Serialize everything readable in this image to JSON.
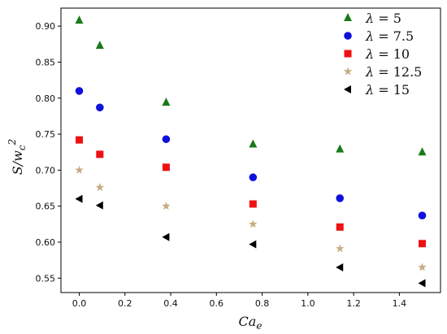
{
  "chart_data": {
    "type": "scatter",
    "title": "",
    "xlabel": "Ca_e",
    "ylabel": "S/w_c^2",
    "xlim": [
      -0.08,
      1.58
    ],
    "ylim": [
      0.53,
      0.925
    ],
    "xticks": [
      "0.0",
      "0.2",
      "0.4",
      "0.6",
      "0.8",
      "1.0",
      "1.2",
      "1.4"
    ],
    "yticks": [
      "0.55",
      "0.60",
      "0.65",
      "0.70",
      "0.75",
      "0.80",
      "0.85",
      "0.90"
    ],
    "grid": false,
    "legend_position": "top-right",
    "x": [
      0.0,
      0.09,
      0.38,
      0.76,
      1.14,
      1.5
    ],
    "series": [
      {
        "name": "λ = 5",
        "greek": "λ",
        "eq": " = ",
        "num": "5",
        "marker": "triangle-up",
        "color": "#1a7a1a",
        "values": [
          0.908,
          0.873,
          0.794,
          0.736,
          0.729,
          0.725
        ]
      },
      {
        "name": "λ = 7.5",
        "greek": "λ",
        "eq": " = ",
        "num": "7.5",
        "marker": "circle",
        "color": "#1010dd",
        "values": [
          0.81,
          0.787,
          0.743,
          0.69,
          0.661,
          0.637
        ]
      },
      {
        "name": "λ = 10",
        "greek": "λ",
        "eq": " = ",
        "num": "10",
        "marker": "square",
        "color": "#ee1111",
        "values": [
          0.742,
          0.722,
          0.704,
          0.653,
          0.621,
          0.598
        ]
      },
      {
        "name": "λ = 12.5",
        "greek": "λ",
        "eq": " = ",
        "num": "12.5",
        "marker": "star",
        "color": "#c8ab84",
        "values": [
          0.7,
          0.676,
          0.65,
          0.625,
          0.591,
          0.565
        ]
      },
      {
        "name": "λ = 15",
        "greek": "λ",
        "eq": " = ",
        "num": "15",
        "marker": "triangle-left",
        "color": "#000000",
        "values": [
          0.66,
          0.651,
          0.607,
          0.597,
          0.565,
          0.543
        ]
      }
    ]
  }
}
